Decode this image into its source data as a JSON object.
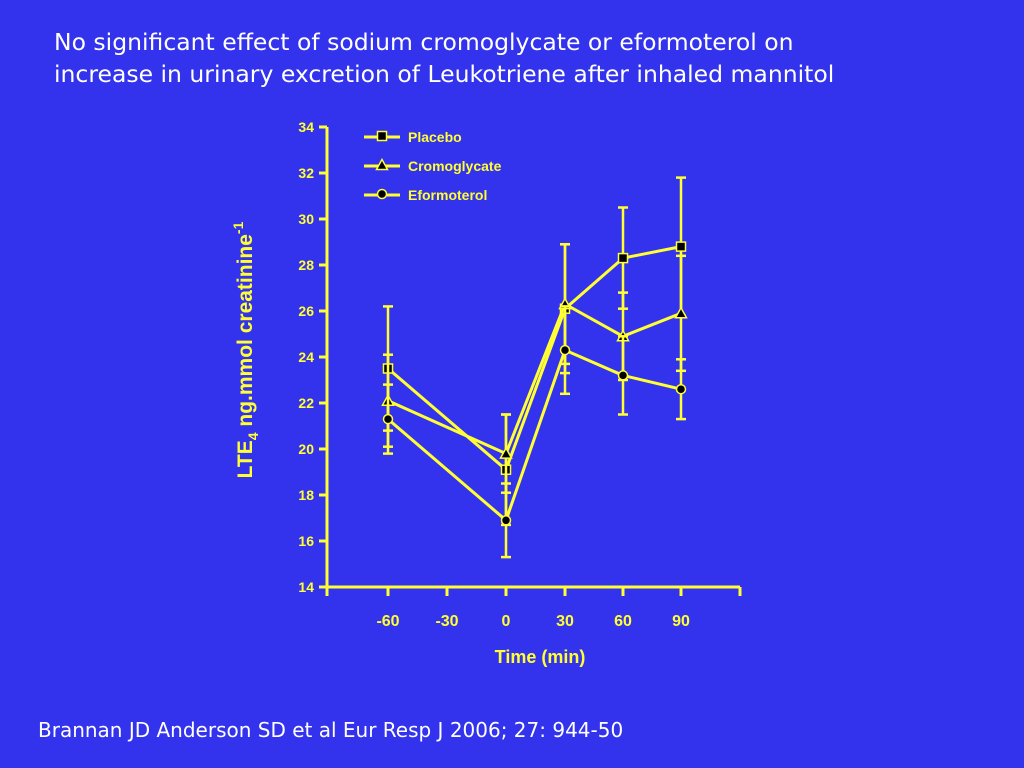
{
  "slide": {
    "title_line1": "No significant effect of sodium cromoglycate or eformoterol on",
    "title_line2": "increase in urinary excretion of Leukotriene after inhaled mannitol",
    "citation": "Brannan JD Anderson SD et al Eur Resp J 2006; 27: 944-50"
  },
  "colors": {
    "background": "#3333ee",
    "foreground": "#ffff33",
    "text": "#ffffff"
  },
  "chart_data": {
    "type": "line",
    "xlabel": "Time (min)",
    "ylabel_main": "LTE",
    "ylabel_sub": "4",
    "ylabel_rest": " ng.mmol creatinine",
    "ylabel_sup": "-1",
    "ylim": [
      14,
      34
    ],
    "y_ticks": [
      "14",
      "16",
      "18",
      "20",
      "22",
      "24",
      "26",
      "28",
      "30",
      "32",
      "34"
    ],
    "x_categories": [
      "-60",
      "-30",
      "0",
      "30",
      "60",
      "90"
    ],
    "legend_position": "top-left",
    "series": [
      {
        "name": "Placebo",
        "marker": "square",
        "x": [
          -60,
          0,
          30,
          60,
          90
        ],
        "y": [
          23.5,
          19.1,
          26.1,
          28.3,
          28.8
        ],
        "err": [
          2.7,
          2.4,
          2.8,
          2.2,
          3.0
        ]
      },
      {
        "name": "Cromoglycate",
        "marker": "triangle",
        "x": [
          -60,
          0,
          30,
          60,
          90
        ],
        "y": [
          22.1,
          19.8,
          26.3,
          24.9,
          25.9
        ],
        "err": [
          2.0,
          1.7,
          2.6,
          1.9,
          2.5
        ]
      },
      {
        "name": "Eformoterol",
        "marker": "circle",
        "x": [
          -60,
          0,
          30,
          60,
          90
        ],
        "y": [
          21.3,
          16.9,
          24.3,
          23.2,
          22.6
        ],
        "err": [
          1.5,
          1.6,
          1.9,
          1.7,
          1.3
        ]
      }
    ]
  }
}
